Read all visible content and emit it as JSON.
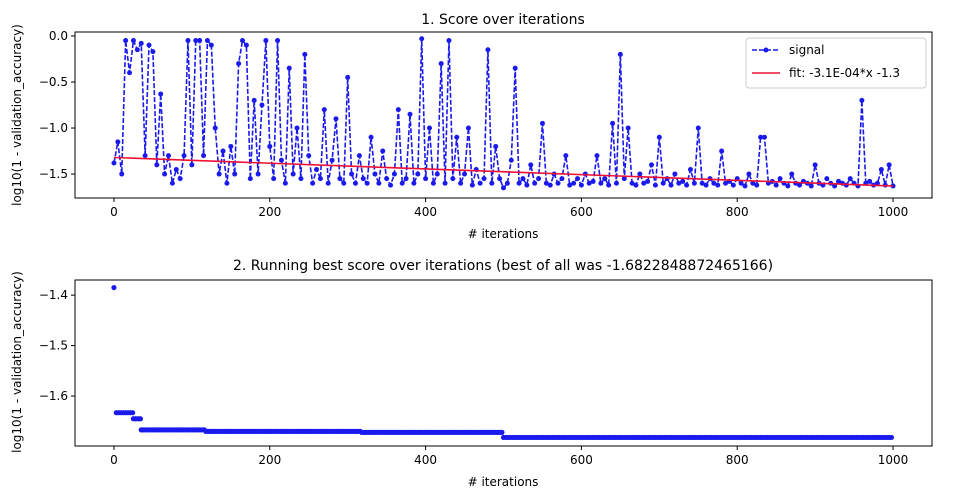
{
  "chart_data": [
    {
      "type": "line",
      "title": "1. Score over iterations",
      "xlabel": "# iterations",
      "ylabel": "log10(1 - validation_accuracy)",
      "xlim": [
        -50,
        1050
      ],
      "ylim": [
        -1.76,
        0.043
      ],
      "xticks": [
        "0",
        "200",
        "400",
        "600",
        "800",
        "1000"
      ],
      "xtick_values": [
        0,
        200,
        400,
        600,
        800,
        1000
      ],
      "yticks": [
        "0.0",
        "−0.5",
        "−1.0",
        "−1.5"
      ],
      "ytick_values": [
        0,
        -0.5,
        -1.0,
        -1.5
      ],
      "legend_position": "top-right",
      "series": [
        {
          "name": "signal",
          "color": "#1a1aee",
          "style": "dashed-with-markers",
          "x_start": 0,
          "x_step": 5,
          "values": [
            -1.38,
            -1.15,
            -1.5,
            -0.05,
            -0.4,
            -0.05,
            -0.15,
            -0.08,
            -1.3,
            -0.1,
            -0.17,
            -1.4,
            -0.63,
            -1.5,
            -1.3,
            -1.6,
            -1.45,
            -1.55,
            -1.3,
            -0.05,
            -1.4,
            -0.05,
            -0.05,
            -1.3,
            -0.05,
            -0.1,
            -1.0,
            -1.5,
            -1.25,
            -1.6,
            -1.2,
            -1.5,
            -0.3,
            -0.05,
            -0.1,
            -1.55,
            -0.7,
            -1.5,
            -0.75,
            -0.05,
            -1.2,
            -1.55,
            -0.05,
            -1.35,
            -1.6,
            -0.35,
            -1.5,
            -1.0,
            -1.55,
            -0.2,
            -1.3,
            -1.6,
            -1.45,
            -1.55,
            -0.8,
            -1.6,
            -1.35,
            -0.9,
            -1.55,
            -1.6,
            -0.45,
            -1.5,
            -1.6,
            -1.3,
            -1.55,
            -1.6,
            -1.1,
            -1.5,
            -1.6,
            -1.25,
            -1.55,
            -1.62,
            -1.5,
            -0.8,
            -1.6,
            -1.55,
            -0.85,
            -1.6,
            -1.5,
            -0.03,
            -1.55,
            -1.0,
            -1.6,
            -1.5,
            -0.3,
            -1.6,
            -0.05,
            -1.55,
            -1.1,
            -1.6,
            -1.5,
            -1.0,
            -1.62,
            -1.45,
            -1.6,
            -1.55,
            -0.15,
            -1.6,
            -1.2,
            -1.55,
            -1.65,
            -1.6,
            -1.35,
            -0.35,
            -1.6,
            -1.55,
            -1.62,
            -1.4,
            -1.6,
            -1.55,
            -0.95,
            -1.6,
            -1.62,
            -1.5,
            -1.6,
            -1.55,
            -1.3,
            -1.62,
            -1.6,
            -1.55,
            -1.62,
            -1.5,
            -1.6,
            -1.58,
            -1.3,
            -1.6,
            -1.55,
            -1.62,
            -0.95,
            -1.6,
            -0.2,
            -1.55,
            -1.0,
            -1.6,
            -1.62,
            -1.5,
            -1.6,
            -1.58,
            -1.4,
            -1.62,
            -1.1,
            -1.6,
            -1.55,
            -1.62,
            -1.5,
            -1.6,
            -1.58,
            -1.62,
            -1.45,
            -1.6,
            -1.0,
            -1.6,
            -1.62,
            -1.55,
            -1.6,
            -1.62,
            -1.25,
            -1.6,
            -1.58,
            -1.62,
            -1.55,
            -1.6,
            -1.63,
            -1.5,
            -1.6,
            -1.62,
            -1.1,
            -1.1,
            -1.6,
            -1.58,
            -1.62,
            -1.55,
            -1.6,
            -1.63,
            -1.5,
            -1.6,
            -1.62,
            -1.58,
            -1.6,
            -1.63,
            -1.4,
            -1.6,
            -1.62,
            -1.55,
            -1.6,
            -1.63,
            -1.58,
            -1.6,
            -1.62,
            -1.55,
            -1.6,
            -1.63,
            -0.7,
            -1.6,
            -1.58,
            -1.62,
            -1.6,
            -1.45,
            -1.62,
            -1.4,
            -1.63
          ]
        },
        {
          "name": "fit: -3.1E-04*x -1.3",
          "color": "#ee1133",
          "style": "solid",
          "slope": -0.00031,
          "intercept": -1.32
        }
      ]
    },
    {
      "type": "scatter",
      "title": "2. Running best score over iterations (best of all was -1.6822848872465166)",
      "xlabel": "# iterations",
      "ylabel": "log10(1 - validation_accuracy)",
      "xlim": [
        -50,
        1050
      ],
      "ylim": [
        -1.699,
        -1.37
      ],
      "xticks": [
        "0",
        "200",
        "400",
        "600",
        "800",
        "1000"
      ],
      "xtick_values": [
        0,
        200,
        400,
        600,
        800,
        1000
      ],
      "yticks": [
        "−1.4",
        "−1.5",
        "−1.6"
      ],
      "ytick_values": [
        -1.4,
        -1.5,
        -1.6
      ],
      "color": "#1a1aee",
      "steps": [
        {
          "from": 0,
          "to": 2,
          "value": -1.385
        },
        {
          "from": 3,
          "to": 24,
          "value": -1.633
        },
        {
          "from": 25,
          "to": 34,
          "value": -1.645
        },
        {
          "from": 35,
          "to": 117,
          "value": -1.667
        },
        {
          "from": 118,
          "to": 317,
          "value": -1.67
        },
        {
          "from": 318,
          "to": 499,
          "value": -1.672
        },
        {
          "from": 500,
          "to": 1000,
          "value": -1.682
        }
      ]
    }
  ]
}
